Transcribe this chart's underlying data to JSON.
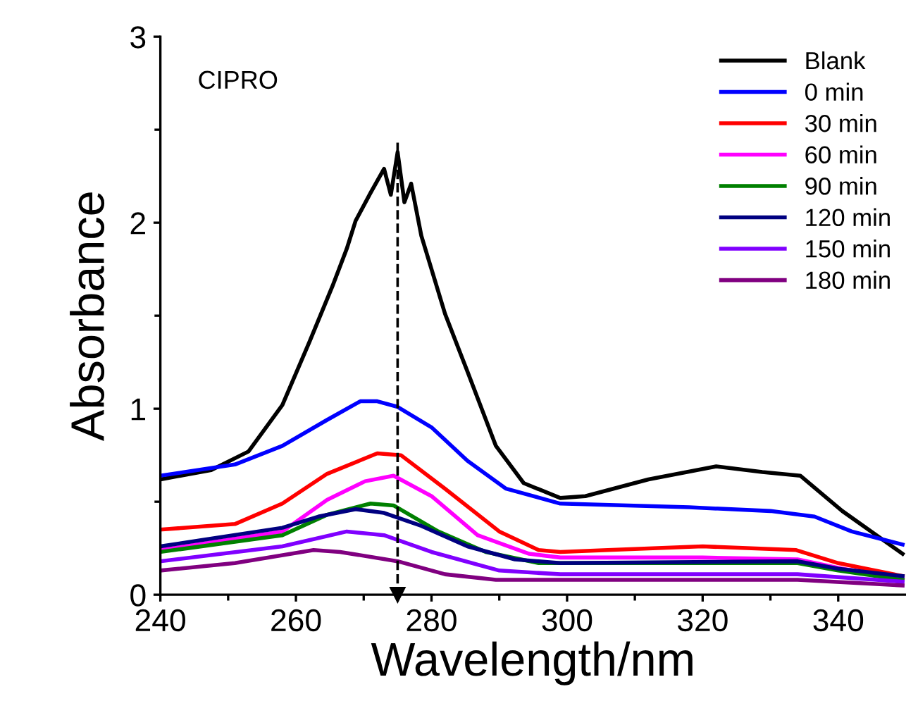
{
  "chart_data": {
    "type": "line",
    "xlabel": "Wavelength/nm",
    "ylabel": "Absorbance",
    "annotations": [
      "CIPRO"
    ],
    "xlim": [
      240,
      350
    ],
    "ylim": [
      0,
      3
    ],
    "xticks": [
      240,
      {
        "value": 250,
        "label": null
      },
      260,
      {
        "value": 270,
        "label": null
      },
      280,
      {
        "value": 290,
        "label": null
      },
      300,
      {
        "value": 310,
        "label": null
      },
      320,
      {
        "value": 330,
        "label": null
      },
      340
    ],
    "yticks": [
      0,
      {
        "value": 0.5,
        "label": null
      },
      1,
      {
        "value": 1.5,
        "label": null
      },
      2,
      {
        "value": 2.5,
        "label": null
      },
      3
    ],
    "grid": false,
    "legend": "top right",
    "marker": "none",
    "line_style": "solid",
    "ref_lines": [
      {
        "axis": "x",
        "value": 275,
        "label": null,
        "color": "#000000",
        "line_style": "dashed"
      }
    ],
    "series": [
      {
        "name": "Blank",
        "color": "#000000",
        "x": [
          240,
          247.5,
          253,
          258,
          262,
          265.4,
          267.5,
          268.8,
          271,
          273,
          274,
          275,
          276,
          277,
          278.5,
          282,
          285.3,
          289.5,
          293.6,
          299,
          302.7,
          312,
          322,
          328.8,
          334.4,
          340.6,
          349.5
        ],
        "values": [
          0.62,
          0.67,
          0.77,
          1.02,
          1.36,
          1.66,
          1.86,
          2.01,
          2.16,
          2.29,
          2.15,
          2.38,
          2.11,
          2.21,
          1.93,
          1.51,
          1.2,
          0.8,
          0.6,
          0.52,
          0.53,
          0.62,
          0.69,
          0.66,
          0.64,
          0.45,
          0.22
        ]
      },
      {
        "name": "0 min",
        "color": "#0000ff",
        "x": [
          240,
          251,
          258,
          264.6,
          269.5,
          272,
          275,
          280,
          285.3,
          291,
          299,
          318,
          330,
          336.5,
          342,
          349.5
        ],
        "values": [
          0.64,
          0.7,
          0.8,
          0.94,
          1.04,
          1.04,
          1.01,
          0.9,
          0.72,
          0.57,
          0.49,
          0.47,
          0.45,
          0.42,
          0.34,
          0.27
        ]
      },
      {
        "name": "30 min",
        "color": "#ff0000",
        "x": [
          240,
          251,
          258,
          264.6,
          272,
          275.5,
          282,
          290,
          295.8,
          299,
          306,
          320,
          333.8,
          340,
          349.5
        ],
        "values": [
          0.35,
          0.38,
          0.49,
          0.65,
          0.76,
          0.75,
          0.57,
          0.34,
          0.24,
          0.23,
          0.24,
          0.26,
          0.24,
          0.17,
          0.1
        ]
      },
      {
        "name": "60 min",
        "color": "#ff00ff",
        "x": [
          240,
          258,
          264.6,
          270.2,
          274.4,
          280,
          286.8,
          294.4,
          299,
          320,
          334,
          340.6,
          349.5
        ],
        "values": [
          0.24,
          0.34,
          0.51,
          0.61,
          0.64,
          0.53,
          0.32,
          0.22,
          0.2,
          0.2,
          0.19,
          0.14,
          0.09
        ]
      },
      {
        "name": "90 min",
        "color": "#008000",
        "x": [
          240,
          258,
          264.6,
          271,
          274.4,
          281,
          288,
          295.8,
          299,
          334,
          340,
          349.5
        ],
        "values": [
          0.23,
          0.32,
          0.43,
          0.49,
          0.48,
          0.34,
          0.23,
          0.17,
          0.17,
          0.17,
          0.13,
          0.08
        ]
      },
      {
        "name": "120 min",
        "color": "#000080",
        "x": [
          240,
          258,
          263.3,
          268.8,
          273,
          278.5,
          285.3,
          292.3,
          299,
          334,
          340,
          349.5
        ],
        "values": [
          0.26,
          0.36,
          0.42,
          0.46,
          0.44,
          0.37,
          0.26,
          0.19,
          0.17,
          0.18,
          0.14,
          0.1
        ]
      },
      {
        "name": "150 min",
        "color": "#8000ff",
        "x": [
          240,
          258,
          267.5,
          273,
          280,
          290,
          299,
          334,
          349.5
        ],
        "values": [
          0.18,
          0.26,
          0.34,
          0.32,
          0.23,
          0.13,
          0.11,
          0.11,
          0.07
        ]
      },
      {
        "name": "180 min",
        "color": "#800080",
        "x": [
          240,
          251,
          262.6,
          266.5,
          275,
          282,
          289.5,
          299,
          334,
          349.5
        ],
        "values": [
          0.13,
          0.17,
          0.24,
          0.23,
          0.18,
          0.11,
          0.08,
          0.08,
          0.08,
          0.05
        ]
      }
    ]
  }
}
